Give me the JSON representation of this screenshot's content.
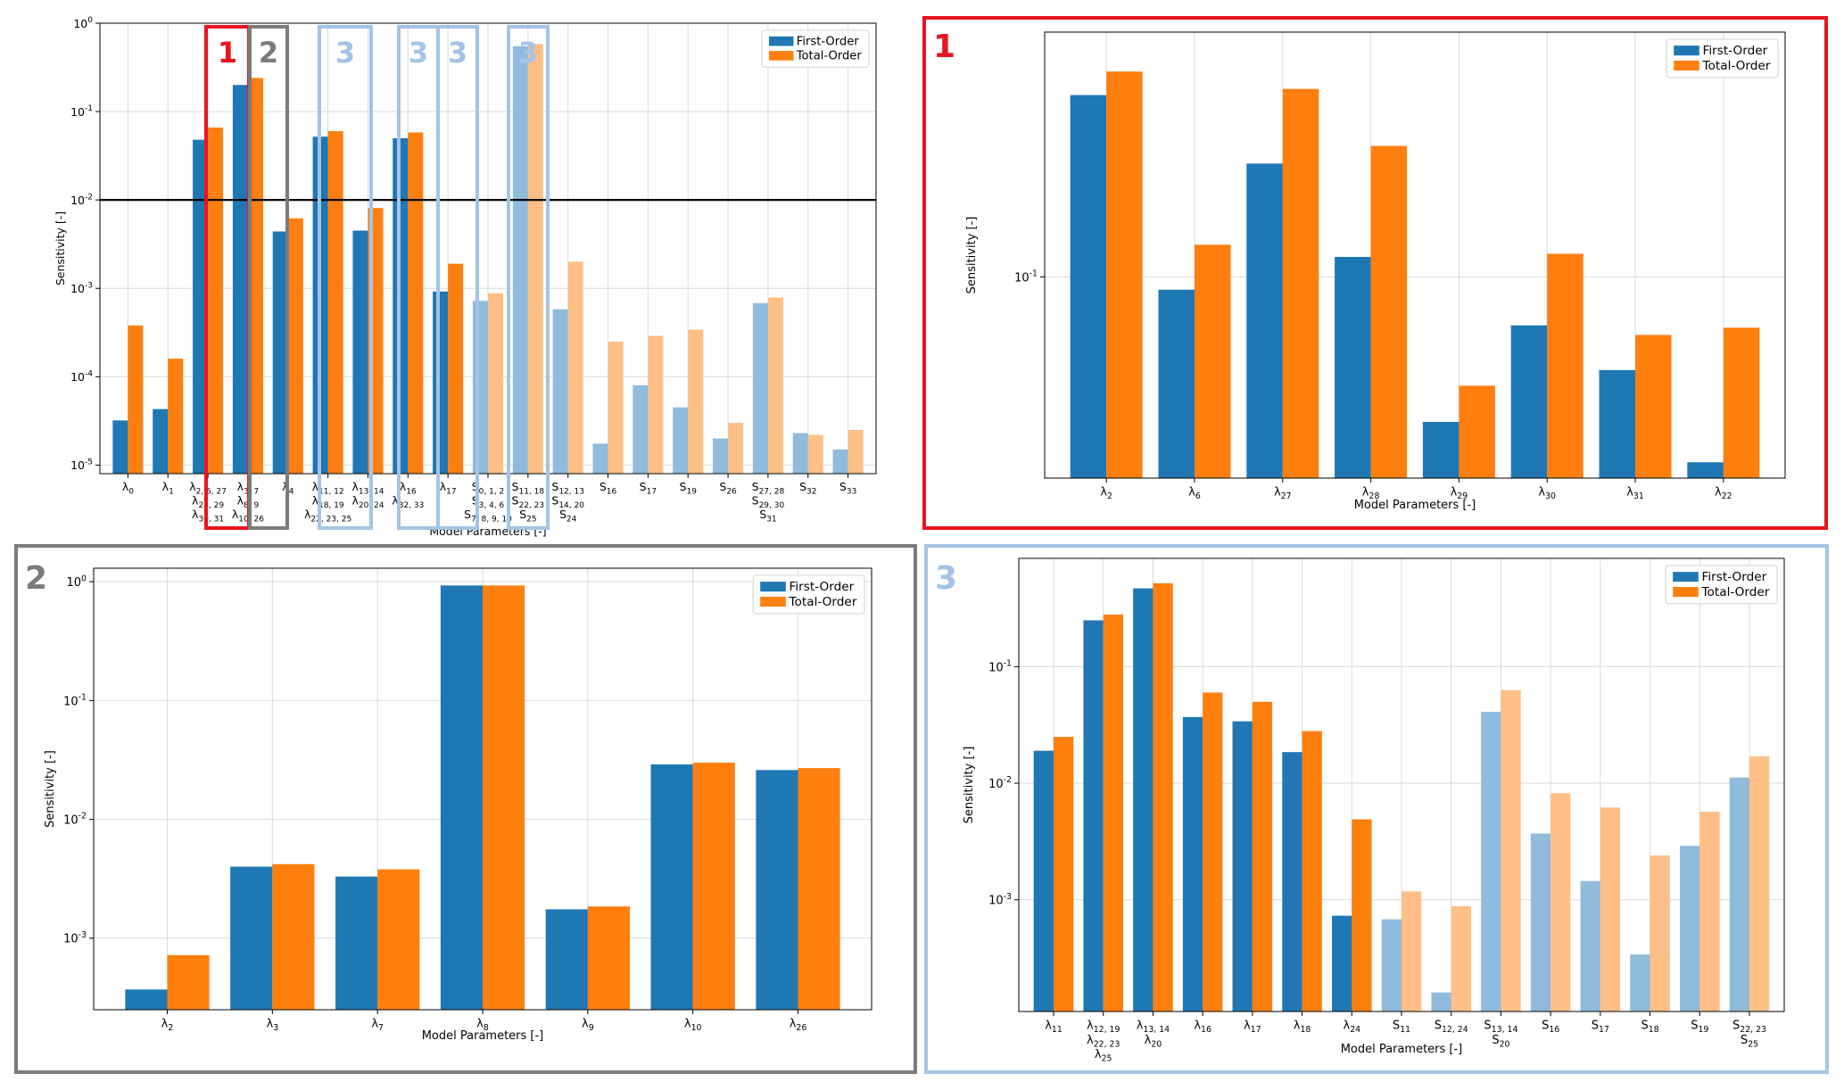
{
  "legend": {
    "first": "First-Order",
    "total": "Total-Order"
  },
  "colors": {
    "first": "#1f77b4",
    "total": "#ff7f0e",
    "first_light": "#8fbbdd",
    "total_light": "#ffbf86",
    "panel1": "#e8141f",
    "panel2": "#7b7b7b",
    "panel3": "#a3c4e6",
    "refline": "#000000"
  },
  "panel_labels": {
    "p1": "1",
    "p2": "2",
    "p3": "3"
  },
  "overview_markers": [
    "1",
    "2",
    "3",
    "3",
    "3",
    "3"
  ],
  "chart_data": [
    {
      "id": "overview",
      "type": "bar",
      "log_y": true,
      "ylim": [
        8e-06,
        1
      ],
      "xlabel": "Model Parameters [-]",
      "ylabel": "Sensitivity [-]",
      "yticks": [
        "10^0",
        "10^-1",
        "10^-2",
        "10^-3",
        "10^-4",
        "10^-5"
      ],
      "reference_line": 0.01,
      "grid": true,
      "legend_position": "top-right",
      "categories": [
        [
          "λ0"
        ],
        [
          "λ1"
        ],
        [
          "λ2, 6, 27",
          "λ28, 29",
          "λ30, 31"
        ],
        [
          "λ3, 7",
          "λ8, 9",
          "λ10, 26"
        ],
        [
          "λ4"
        ],
        [
          "λ11, 12",
          "λ18, 19",
          "λ22, 23, 25"
        ],
        [
          "λ13, 14",
          "λ20, 24"
        ],
        [
          "λ16",
          "λ32, 33"
        ],
        [
          "λ17"
        ],
        [
          "S0, 1, 2",
          "S3, 4, 6",
          "S7, 8, 9, 10"
        ],
        [
          "S11, 18",
          "S22, 23",
          "S25"
        ],
        [
          "S12, 13",
          "S14, 20",
          "S24"
        ],
        [
          "S16"
        ],
        [
          "S17"
        ],
        [
          "S19"
        ],
        [
          "S26"
        ],
        [
          "S27, 28",
          "S29, 30",
          "S31"
        ],
        [
          "S32"
        ],
        [
          "S33"
        ]
      ],
      "light": [
        false,
        false,
        false,
        false,
        false,
        false,
        false,
        false,
        false,
        true,
        true,
        true,
        true,
        true,
        true,
        true,
        true,
        true,
        true
      ],
      "series": [
        {
          "name": "First-Order",
          "values": [
            3.2e-05,
            4.3e-05,
            0.048,
            0.2,
            0.0044,
            0.052,
            0.0045,
            0.05,
            0.00092,
            0.00072,
            0.55,
            0.00058,
            1.75e-05,
            8e-05,
            4.5e-05,
            2e-05,
            0.00068,
            2.3e-05,
            1.5e-05
          ]
        },
        {
          "name": "Total-Order",
          "values": [
            0.00038,
            0.00016,
            0.066,
            0.24,
            0.0062,
            0.06,
            0.0081,
            0.058,
            0.0019,
            0.00088,
            0.58,
            0.002,
            0.00025,
            0.00029,
            0.00034,
            3e-05,
            0.00079,
            2.2e-05,
            2.5e-05
          ]
        }
      ]
    },
    {
      "id": "panel1",
      "type": "bar",
      "log_y": true,
      "ylim": [
        0.032,
        0.4
      ],
      "xlabel": "Model Parameters [-]",
      "ylabel": "Sensitivity [-]",
      "yticks": [
        "10^-1"
      ],
      "grid": true,
      "legend_position": "top-right",
      "categories": [
        [
          "λ2"
        ],
        [
          "λ6"
        ],
        [
          "λ27"
        ],
        [
          "λ28"
        ],
        [
          "λ29"
        ],
        [
          "λ30"
        ],
        [
          "λ31"
        ],
        [
          "λ22"
        ]
      ],
      "series": [
        {
          "name": "First-Order",
          "values": [
            0.28,
            0.093,
            0.19,
            0.112,
            0.044,
            0.076,
            0.059,
            0.035
          ]
        },
        {
          "name": "Total-Order",
          "values": [
            0.32,
            0.12,
            0.29,
            0.21,
            0.054,
            0.114,
            0.072,
            0.075
          ]
        }
      ]
    },
    {
      "id": "panel2",
      "type": "bar",
      "log_y": true,
      "ylim": [
        0.00025,
        1.3
      ],
      "xlabel": "Model Parameters [-]",
      "ylabel": "Sensitivity [-]",
      "yticks": [
        "10^0",
        "10^-1",
        "10^-2",
        "10^-3"
      ],
      "grid": true,
      "legend_position": "top-right",
      "categories": [
        [
          "λ2"
        ],
        [
          "λ3"
        ],
        [
          "λ7"
        ],
        [
          "λ8"
        ],
        [
          "λ9"
        ],
        [
          "λ10"
        ],
        [
          "λ26"
        ]
      ],
      "series": [
        {
          "name": "First-Order",
          "values": [
            0.00037,
            0.004,
            0.0033,
            0.93,
            0.00175,
            0.029,
            0.026
          ]
        },
        {
          "name": "Total-Order",
          "values": [
            0.00072,
            0.0042,
            0.0038,
            0.93,
            0.00185,
            0.03,
            0.027
          ]
        }
      ]
    },
    {
      "id": "panel3",
      "type": "bar",
      "log_y": true,
      "ylim": [
        0.00011,
        0.85
      ],
      "xlabel": "Model Parameters [-]",
      "ylabel": "Sensitivity [-]",
      "yticks": [
        "10^-1",
        "10^-2",
        "10^-3"
      ],
      "grid": true,
      "legend_position": "top-right",
      "categories": [
        [
          "λ11"
        ],
        [
          "λ12, 19",
          "λ22, 23",
          "λ25"
        ],
        [
          "λ13, 14",
          "λ20"
        ],
        [
          "λ16"
        ],
        [
          "λ17"
        ],
        [
          "λ18"
        ],
        [
          "λ24"
        ],
        [
          "S11"
        ],
        [
          "S12, 24"
        ],
        [
          "S13, 14",
          "S20"
        ],
        [
          "S16"
        ],
        [
          "S17"
        ],
        [
          "S18"
        ],
        [
          "S19"
        ],
        [
          "S22, 23",
          "S25"
        ]
      ],
      "light": [
        false,
        false,
        false,
        false,
        false,
        false,
        false,
        true,
        true,
        true,
        true,
        true,
        true,
        true,
        true
      ],
      "series": [
        {
          "name": "First-Order",
          "values": [
            0.019,
            0.25,
            0.47,
            0.037,
            0.034,
            0.0185,
            0.00073,
            0.00068,
            0.00016,
            0.041,
            0.0037,
            0.00145,
            0.00034,
            0.0029,
            0.0112
          ]
        },
        {
          "name": "Total-Order",
          "values": [
            0.025,
            0.28,
            0.52,
            0.06,
            0.05,
            0.028,
            0.0049,
            0.00118,
            0.00088,
            0.063,
            0.0082,
            0.0062,
            0.0024,
            0.0057,
            0.017
          ]
        }
      ]
    }
  ]
}
